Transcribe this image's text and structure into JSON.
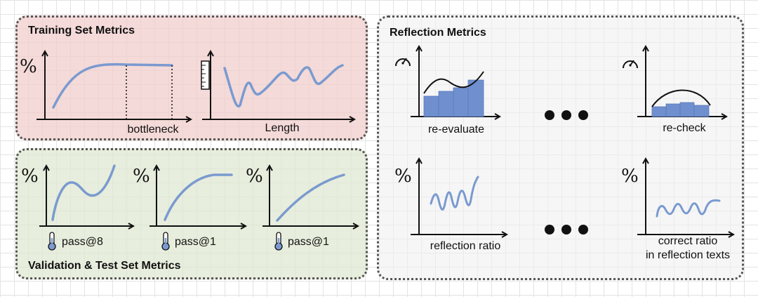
{
  "panels": {
    "training": {
      "title": "Training Set Metrics",
      "plot1": {
        "y_label": "%",
        "x_label": "bottleneck"
      },
      "plot2": {
        "x_label": "Length",
        "y_icon": "ruler-icon"
      }
    },
    "validation": {
      "title": "Validation & Test Set Metrics",
      "plots": [
        {
          "y_label": "%",
          "x_label": "pass@8",
          "x_icon": "thermometer-icon"
        },
        {
          "y_label": "%",
          "x_label": "pass@1",
          "x_icon": "thermometer-icon"
        },
        {
          "y_label": "%",
          "x_label": "pass@1",
          "x_icon": "thermometer-icon"
        }
      ]
    },
    "reflection": {
      "title": "Reflection Metrics",
      "plots": [
        {
          "x_label": "re-evaluate",
          "y_icon": "gauge-icon"
        },
        {
          "x_label": "re-check",
          "y_icon": "gauge-icon"
        },
        {
          "y_label": "%",
          "x_label": "reflection ratio"
        },
        {
          "y_label": "%",
          "x_label_line1": "correct ratio",
          "x_label_line2": "in reflection texts"
        }
      ]
    }
  },
  "colors": {
    "curve": "#7a9ad0",
    "bar": "#6f8fcf",
    "training_bg": "#f0cdcb",
    "validation_bg": "#e0e8d2",
    "border": "#555555"
  }
}
